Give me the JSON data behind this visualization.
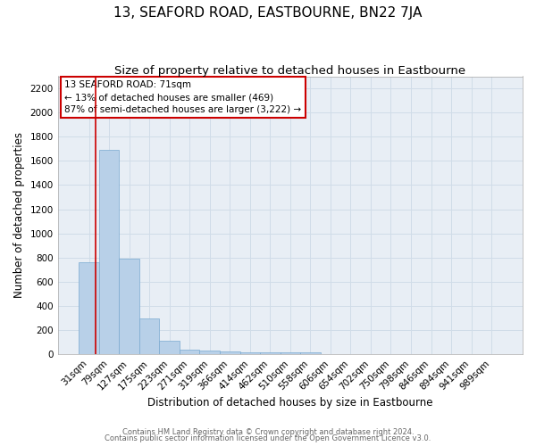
{
  "title": "13, SEAFORD ROAD, EASTBOURNE, BN22 7JA",
  "subtitle": "Size of property relative to detached houses in Eastbourne",
  "xlabel": "Distribution of detached houses by size in Eastbourne",
  "ylabel": "Number of detached properties",
  "categories": [
    "31sqm",
    "79sqm",
    "127sqm",
    "175sqm",
    "223sqm",
    "271sqm",
    "319sqm",
    "366sqm",
    "414sqm",
    "462sqm",
    "510sqm",
    "558sqm",
    "606sqm",
    "654sqm",
    "702sqm",
    "750sqm",
    "798sqm",
    "846sqm",
    "894sqm",
    "941sqm",
    "989sqm"
  ],
  "values": [
    760,
    1690,
    790,
    300,
    110,
    40,
    30,
    25,
    15,
    15,
    20,
    20,
    0,
    0,
    0,
    0,
    0,
    0,
    0,
    0,
    0
  ],
  "bar_color": "#b8d0e8",
  "bar_edge_color": "#7aaad0",
  "grid_color": "#d0dce8",
  "background_color": "#e8eef5",
  "vline_color": "#cc0000",
  "ylim": [
    0,
    2300
  ],
  "yticks": [
    0,
    200,
    400,
    600,
    800,
    1000,
    1200,
    1400,
    1600,
    1800,
    2000,
    2200
  ],
  "annotation_title": "13 SEAFORD ROAD: 71sqm",
  "annotation_line1": "← 13% of detached houses are smaller (469)",
  "annotation_line2": "87% of semi-detached houses are larger (3,222) →",
  "annotation_box_color": "#ffffff",
  "annotation_box_edge": "#cc0000",
  "footer1": "Contains HM Land Registry data © Crown copyright and database right 2024.",
  "footer2": "Contains public sector information licensed under the Open Government Licence v3.0.",
  "title_fontsize": 11,
  "subtitle_fontsize": 9.5,
  "tick_fontsize": 7.5,
  "ylabel_fontsize": 8.5,
  "xlabel_fontsize": 8.5,
  "annotation_fontsize": 7.5,
  "footer_fontsize": 6
}
